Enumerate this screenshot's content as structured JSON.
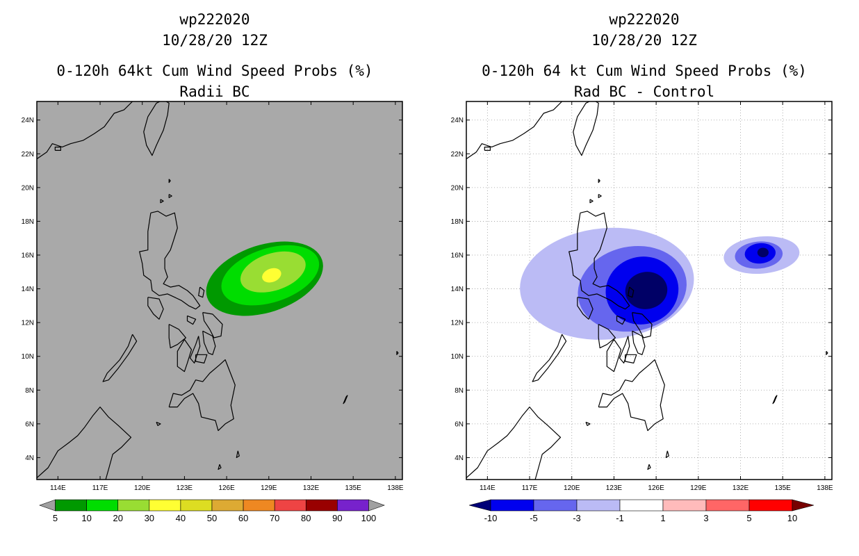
{
  "chart_data": [
    {
      "type": "heatmap",
      "panel": "left",
      "title_lines": [
        "wp222020",
        "10/28/20 12Z",
        "0-120h 64kt Cum Wind Speed Probs (%)",
        "Radii BC"
      ],
      "x_ticks": [
        "114E",
        "117E",
        "120E",
        "123E",
        "126E",
        "129E",
        "132E",
        "135E",
        "138E"
      ],
      "y_ticks": [
        "4N",
        "6N",
        "8N",
        "10N",
        "12N",
        "14N",
        "16N",
        "18N",
        "20N",
        "22N",
        "24N"
      ],
      "xlim": [
        112.5,
        138.5
      ],
      "ylim": [
        2.7,
        25.1
      ],
      "background_color": "#a9a9a9",
      "grid": false,
      "colorbar": {
        "labels": [
          "5",
          "10",
          "20",
          "30",
          "40",
          "50",
          "60",
          "70",
          "80",
          "90",
          "100"
        ],
        "colors": [
          "#009900",
          "#00dd00",
          "#99dd33",
          "#ffff33",
          "#dddd22",
          "#ddaa33",
          "#ee8822",
          "#ee4444",
          "#990000",
          "#7722cc"
        ],
        "end_colors": [
          "#a0a0a0",
          "#a0a0a0"
        ]
      },
      "contours": [
        {
          "level": "5-10",
          "color": "#009900",
          "center": [
            128.7,
            14.6
          ],
          "semi_axes": [
            4.3,
            2.0
          ],
          "rotation_deg": -18
        },
        {
          "level": "10-20",
          "color": "#00dd00",
          "center": [
            129.1,
            14.8
          ],
          "semi_axes": [
            3.6,
            1.6
          ],
          "rotation_deg": -18
        },
        {
          "level": "20-30",
          "color": "#99dd33",
          "center": [
            129.3,
            15.0
          ],
          "semi_axes": [
            2.4,
            1.1
          ],
          "rotation_deg": -18
        },
        {
          "level": "30-40",
          "color": "#ffff33",
          "center": [
            129.2,
            14.8
          ],
          "semi_axes": [
            0.7,
            0.4
          ],
          "rotation_deg": -20
        }
      ]
    },
    {
      "type": "heatmap",
      "panel": "right",
      "title_lines": [
        "wp222020",
        "10/28/20 12Z",
        "0-120h 64 kt Cum Wind Speed Probs (%)",
        "Rad BC - Control"
      ],
      "x_ticks": [
        "114E",
        "117E",
        "120E",
        "123E",
        "126E",
        "129E",
        "132E",
        "135E",
        "138E"
      ],
      "y_ticks": [
        "4N",
        "6N",
        "8N",
        "10N",
        "12N",
        "14N",
        "16N",
        "18N",
        "20N",
        "22N",
        "24N"
      ],
      "xlim": [
        112.5,
        138.5
      ],
      "ylim": [
        2.7,
        25.1
      ],
      "background_color": "#ffffff",
      "grid": true,
      "colorbar": {
        "labels": [
          "-10",
          "-5",
          "-3",
          "-1",
          "1",
          "3",
          "5",
          "10"
        ],
        "colors": [
          "#0000ee",
          "#6666ee",
          "#bbbbf5",
          "#ffffff",
          "#ffbbbb",
          "#ff6666",
          "#ff0000"
        ],
        "end_colors": [
          "#000077",
          "#770000"
        ]
      },
      "contours": [
        {
          "level": "-1 to -3",
          "color": "#bbbbf5",
          "center": [
            122.5,
            14.3
          ],
          "semi_axes": [
            6.2,
            3.3
          ],
          "rotation_deg": -5
        },
        {
          "level": "-3 to -5",
          "color": "#6666ee",
          "center": [
            124.3,
            14.0
          ],
          "semi_axes": [
            3.9,
            2.5
          ],
          "rotation_deg": -12
        },
        {
          "level": "-5 to -10",
          "color": "#0000ee",
          "center": [
            125.0,
            13.9
          ],
          "semi_axes": [
            2.6,
            2.0
          ],
          "rotation_deg": -15
        },
        {
          "level": "< -10",
          "color": "#000066",
          "center": [
            125.3,
            13.9
          ],
          "semi_axes": [
            1.5,
            1.1
          ],
          "rotation_deg": -10
        },
        {
          "level": "-1 to -3",
          "color": "#bbbbf5",
          "center": [
            133.5,
            16.0
          ],
          "semi_axes": [
            2.7,
            1.1
          ],
          "rotation_deg": -5
        },
        {
          "level": "-3 to -5",
          "color": "#6666ee",
          "center": [
            133.3,
            16.0
          ],
          "semi_axes": [
            1.7,
            0.8
          ],
          "rotation_deg": -5
        },
        {
          "level": "-5 to -10",
          "color": "#0000ee",
          "center": [
            133.4,
            16.1
          ],
          "semi_axes": [
            1.1,
            0.6
          ],
          "rotation_deg": -5
        },
        {
          "level": "< -10",
          "color": "#000066",
          "center": [
            133.6,
            16.15
          ],
          "semi_axes": [
            0.4,
            0.28
          ],
          "rotation_deg": 0
        }
      ]
    }
  ],
  "coastlines": [
    {
      "name": "luzon",
      "points": [
        [
          120.6,
          18.5
        ],
        [
          121.1,
          18.6
        ],
        [
          121.7,
          18.3
        ],
        [
          122.3,
          18.5
        ],
        [
          122.5,
          17.6
        ],
        [
          122.2,
          16.8
        ],
        [
          122.0,
          16.3
        ],
        [
          121.6,
          15.8
        ],
        [
          121.6,
          15.2
        ],
        [
          121.8,
          14.7
        ],
        [
          121.5,
          14.3
        ],
        [
          122.0,
          14.1
        ],
        [
          122.6,
          14.2
        ],
        [
          123.2,
          13.9
        ],
        [
          123.6,
          13.6
        ],
        [
          124.1,
          13.0
        ],
        [
          123.8,
          12.8
        ],
        [
          123.3,
          13.0
        ],
        [
          122.8,
          13.3
        ],
        [
          122.3,
          13.5
        ],
        [
          121.8,
          13.7
        ],
        [
          121.2,
          13.6
        ],
        [
          120.7,
          13.9
        ],
        [
          120.6,
          14.5
        ],
        [
          120.1,
          14.8
        ],
        [
          120.0,
          15.5
        ],
        [
          119.8,
          16.2
        ],
        [
          120.4,
          16.3
        ],
        [
          120.4,
          17.4
        ],
        [
          120.6,
          18.5
        ]
      ]
    },
    {
      "name": "mindanao",
      "points": [
        [
          121.9,
          7.0
        ],
        [
          122.2,
          7.8
        ],
        [
          122.8,
          7.7
        ],
        [
          123.4,
          8.0
        ],
        [
          123.8,
          8.6
        ],
        [
          124.3,
          8.5
        ],
        [
          124.8,
          9.0
        ],
        [
          125.5,
          9.5
        ],
        [
          125.9,
          9.8
        ],
        [
          126.6,
          8.3
        ],
        [
          126.3,
          7.1
        ],
        [
          126.5,
          6.3
        ],
        [
          125.9,
          6.0
        ],
        [
          125.4,
          5.6
        ],
        [
          125.2,
          6.2
        ],
        [
          124.2,
          6.4
        ],
        [
          124.0,
          7.2
        ],
        [
          123.6,
          7.8
        ],
        [
          123.0,
          7.5
        ],
        [
          122.5,
          7.0
        ],
        [
          121.9,
          7.0
        ]
      ]
    },
    {
      "name": "samar",
      "points": [
        [
          124.3,
          12.6
        ],
        [
          125.0,
          12.5
        ],
        [
          125.7,
          11.9
        ],
        [
          125.6,
          11.2
        ],
        [
          125.1,
          11.1
        ],
        [
          124.8,
          11.6
        ],
        [
          124.4,
          12.1
        ],
        [
          124.3,
          12.6
        ]
      ]
    },
    {
      "name": "leyte",
      "points": [
        [
          124.3,
          11.5
        ],
        [
          125.0,
          11.2
        ],
        [
          125.2,
          10.6
        ],
        [
          125.0,
          10.1
        ],
        [
          124.7,
          10.2
        ],
        [
          124.4,
          10.8
        ],
        [
          124.3,
          11.5
        ]
      ]
    },
    {
      "name": "panay",
      "points": [
        [
          121.9,
          11.9
        ],
        [
          122.6,
          11.6
        ],
        [
          123.1,
          11.1
        ],
        [
          122.5,
          10.7
        ],
        [
          122.0,
          10.5
        ],
        [
          121.9,
          11.1
        ],
        [
          121.9,
          11.9
        ]
      ]
    },
    {
      "name": "negros",
      "points": [
        [
          123.0,
          11.0
        ],
        [
          123.5,
          10.4
        ],
        [
          123.2,
          9.6
        ],
        [
          123.0,
          9.1
        ],
        [
          122.5,
          9.4
        ],
        [
          122.5,
          10.3
        ],
        [
          123.0,
          11.0
        ]
      ]
    },
    {
      "name": "cebu",
      "points": [
        [
          124.0,
          11.2
        ],
        [
          124.1,
          10.6
        ],
        [
          123.7,
          9.6
        ],
        [
          123.4,
          9.9
        ],
        [
          123.8,
          10.7
        ],
        [
          124.0,
          11.2
        ]
      ]
    },
    {
      "name": "bohol",
      "points": [
        [
          123.8,
          10.1
        ],
        [
          124.6,
          10.1
        ],
        [
          124.4,
          9.6
        ],
        [
          123.8,
          9.7
        ],
        [
          123.8,
          10.1
        ]
      ]
    },
    {
      "name": "mindoro",
      "points": [
        [
          120.4,
          13.5
        ],
        [
          121.2,
          13.4
        ],
        [
          121.5,
          12.8
        ],
        [
          121.2,
          12.2
        ],
        [
          120.8,
          12.5
        ],
        [
          120.4,
          13.0
        ],
        [
          120.4,
          13.5
        ]
      ]
    },
    {
      "name": "palawan",
      "points": [
        [
          119.3,
          11.3
        ],
        [
          119.6,
          10.9
        ],
        [
          119.0,
          10.1
        ],
        [
          118.3,
          9.3
        ],
        [
          117.6,
          8.6
        ],
        [
          117.2,
          8.5
        ],
        [
          117.5,
          9.0
        ],
        [
          118.4,
          9.8
        ],
        [
          119.0,
          10.6
        ],
        [
          119.3,
          11.3
        ]
      ]
    },
    {
      "name": "masbate",
      "points": [
        [
          123.2,
          12.4
        ],
        [
          123.8,
          12.2
        ],
        [
          123.6,
          11.9
        ],
        [
          123.2,
          12.1
        ],
        [
          123.2,
          12.4
        ]
      ]
    },
    {
      "name": "catanduanes",
      "points": [
        [
          124.1,
          14.1
        ],
        [
          124.4,
          13.9
        ],
        [
          124.3,
          13.5
        ],
        [
          124.0,
          13.6
        ],
        [
          124.1,
          14.1
        ]
      ]
    },
    {
      "name": "taiwan",
      "points": [
        [
          121.5,
          25.2
        ],
        [
          121.9,
          25.0
        ],
        [
          121.8,
          24.3
        ],
        [
          121.5,
          23.4
        ],
        [
          121.0,
          22.5
        ],
        [
          120.7,
          21.9
        ],
        [
          120.3,
          22.5
        ],
        [
          120.1,
          23.3
        ],
        [
          120.4,
          24.2
        ],
        [
          121.0,
          25.0
        ],
        [
          121.5,
          25.2
        ]
      ]
    },
    {
      "name": "borneo",
      "points": [
        [
          112.5,
          2.8
        ],
        [
          113.3,
          3.4
        ],
        [
          114.0,
          4.4
        ],
        [
          114.8,
          4.9
        ],
        [
          115.4,
          5.3
        ],
        [
          115.9,
          5.8
        ],
        [
          116.5,
          6.5
        ],
        [
          117.0,
          7.0
        ],
        [
          117.6,
          6.4
        ],
        [
          118.3,
          5.9
        ],
        [
          119.2,
          5.2
        ],
        [
          118.5,
          4.6
        ],
        [
          117.9,
          4.2
        ],
        [
          117.6,
          3.3
        ],
        [
          117.4,
          2.7
        ]
      ]
    },
    {
      "name": "china-coast",
      "points": [
        [
          112.5,
          21.7
        ],
        [
          113.2,
          22.1
        ],
        [
          113.6,
          22.6
        ],
        [
          114.3,
          22.4
        ],
        [
          114.9,
          22.6
        ],
        [
          115.8,
          22.8
        ],
        [
          116.6,
          23.2
        ],
        [
          117.3,
          23.6
        ],
        [
          118.0,
          24.4
        ],
        [
          118.7,
          24.6
        ],
        [
          119.3,
          25.1
        ]
      ]
    },
    {
      "name": "batanes-a",
      "points": [
        [
          121.9,
          20.5
        ],
        [
          122.0,
          20.4
        ],
        [
          121.9,
          20.3
        ],
        [
          121.9,
          20.5
        ]
      ]
    },
    {
      "name": "babuyan-a",
      "points": [
        [
          121.9,
          19.6
        ],
        [
          122.1,
          19.5
        ],
        [
          121.9,
          19.4
        ],
        [
          121.9,
          19.6
        ]
      ]
    },
    {
      "name": "babuyan-b",
      "points": [
        [
          121.3,
          19.3
        ],
        [
          121.5,
          19.2
        ],
        [
          121.3,
          19.1
        ],
        [
          121.3,
          19.3
        ]
      ]
    },
    {
      "name": "palau",
      "points": [
        [
          134.6,
          7.7
        ],
        [
          134.4,
          7.3
        ],
        [
          134.3,
          7.2
        ],
        [
          134.5,
          7.6
        ],
        [
          134.6,
          7.7
        ]
      ]
    },
    {
      "name": "sulu-a",
      "points": [
        [
          121.0,
          6.1
        ],
        [
          121.3,
          6.0
        ],
        [
          121.1,
          5.9
        ],
        [
          121.0,
          6.1
        ]
      ]
    },
    {
      "name": "talaud",
      "points": [
        [
          126.8,
          4.4
        ],
        [
          126.9,
          4.1
        ],
        [
          126.7,
          4.0
        ],
        [
          126.8,
          4.4
        ]
      ]
    },
    {
      "name": "sangihe",
      "points": [
        [
          125.5,
          3.6
        ],
        [
          125.6,
          3.4
        ],
        [
          125.4,
          3.3
        ],
        [
          125.5,
          3.6
        ]
      ]
    },
    {
      "name": "hongkong",
      "points": [
        [
          113.8,
          22.2
        ],
        [
          114.2,
          22.2
        ],
        [
          114.2,
          22.4
        ],
        [
          113.8,
          22.4
        ],
        [
          113.8,
          22.2
        ]
      ]
    },
    {
      "name": "small-e",
      "points": [
        [
          138.1,
          10.3
        ],
        [
          138.2,
          10.2
        ],
        [
          138.1,
          10.1
        ],
        [
          138.1,
          10.3
        ]
      ]
    }
  ]
}
